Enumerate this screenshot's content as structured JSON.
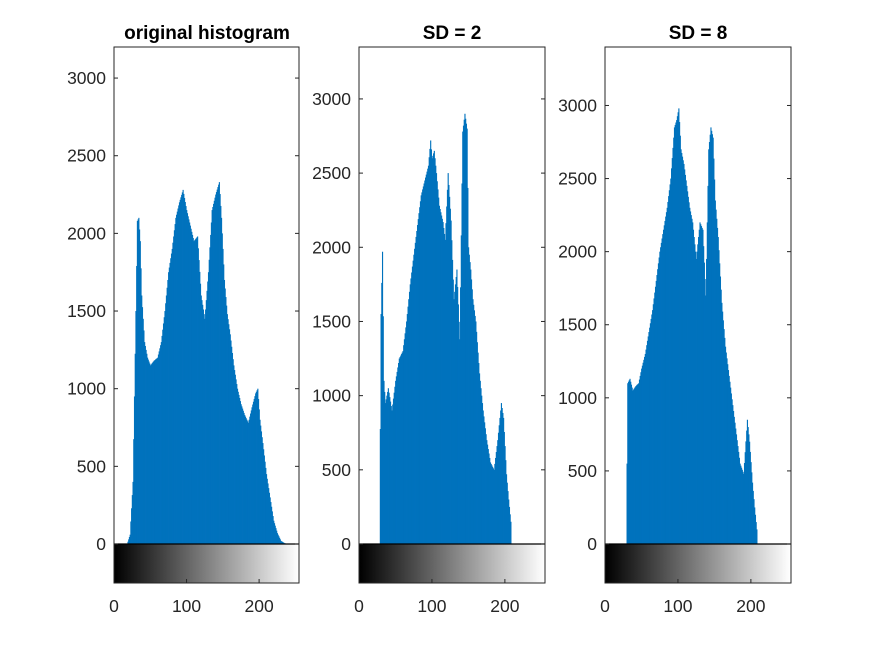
{
  "figure": {
    "background": "#ffffff",
    "bar_color": "#0072bd",
    "axis_color": "#262626"
  },
  "chart_data": [
    {
      "type": "bar",
      "title": "original histogram",
      "xlabel": "",
      "ylabel": "",
      "xlim": [
        0,
        255
      ],
      "ylim": [
        0,
        3200
      ],
      "grid": false,
      "colorbar": "grayscale 0-255",
      "xticks": [
        "0",
        "100",
        "200"
      ],
      "yticks": [
        "0",
        "500",
        "1000",
        "1500",
        "2000",
        "2500",
        "3000"
      ],
      "x": [
        18,
        22,
        26,
        30,
        32,
        34,
        36,
        38,
        42,
        46,
        50,
        55,
        60,
        65,
        70,
        75,
        80,
        85,
        90,
        95,
        100,
        105,
        110,
        115,
        120,
        125,
        130,
        135,
        140,
        145,
        148,
        152,
        156,
        160,
        165,
        170,
        175,
        180,
        185,
        190,
        195,
        198,
        201,
        205,
        210,
        215,
        220,
        225,
        230,
        235,
        240
      ],
      "values": [
        0,
        60,
        400,
        1500,
        2080,
        2100,
        1950,
        1600,
        1300,
        1200,
        1150,
        1180,
        1200,
        1300,
        1500,
        1750,
        1900,
        2100,
        2200,
        2280,
        2150,
        2050,
        1950,
        1980,
        1600,
        1450,
        1750,
        2150,
        2250,
        2330,
        2100,
        1700,
        1480,
        1350,
        1150,
        1000,
        900,
        830,
        780,
        880,
        970,
        1000,
        800,
        650,
        450,
        300,
        150,
        70,
        20,
        5,
        0
      ]
    },
    {
      "type": "bar",
      "title": "SD = 2",
      "xlabel": "",
      "ylabel": "",
      "xlim": [
        0,
        255
      ],
      "ylim": [
        0,
        3350
      ],
      "grid": false,
      "colorbar": "grayscale 0-255",
      "xticks": [
        "0",
        "100",
        "200"
      ],
      "yticks": [
        "0",
        "500",
        "1000",
        "1500",
        "2000",
        "2500",
        "3000"
      ],
      "x": [
        28,
        30,
        32,
        34,
        36,
        40,
        45,
        50,
        55,
        60,
        65,
        70,
        75,
        80,
        85,
        90,
        95,
        98,
        100,
        103,
        106,
        110,
        115,
        118,
        122,
        126,
        130,
        134,
        138,
        142,
        145,
        148,
        150,
        153,
        156,
        160,
        165,
        170,
        175,
        180,
        185,
        190,
        195,
        198,
        202,
        205,
        208,
        209
      ],
      "values": [
        0,
        1550,
        1970,
        1100,
        950,
        1050,
        900,
        1100,
        1250,
        1300,
        1500,
        1750,
        1950,
        2150,
        2350,
        2450,
        2550,
        2720,
        2600,
        2650,
        2500,
        2280,
        2170,
        2050,
        2500,
        2180,
        1650,
        1850,
        1380,
        2780,
        2900,
        2800,
        2000,
        1850,
        1650,
        1500,
        1150,
        900,
        700,
        550,
        500,
        700,
        950,
        850,
        470,
        300,
        150,
        0
      ]
    },
    {
      "type": "bar",
      "title": "SD = 8",
      "xlabel": "",
      "ylabel": "",
      "xlim": [
        0,
        255
      ],
      "ylim": [
        0,
        3400
      ],
      "grid": false,
      "colorbar": "grayscale 0-255",
      "xticks": [
        "0",
        "100",
        "200"
      ],
      "yticks": [
        "0",
        "500",
        "1000",
        "1500",
        "2000",
        "2500",
        "3000"
      ],
      "x": [
        29,
        31,
        34,
        38,
        42,
        46,
        50,
        55,
        60,
        65,
        70,
        75,
        80,
        85,
        90,
        95,
        98,
        101,
        104,
        108,
        112,
        116,
        120,
        125,
        130,
        134,
        138,
        142,
        145,
        148,
        151,
        155,
        160,
        165,
        170,
        175,
        180,
        185,
        190,
        195,
        198,
        202,
        205,
        208,
        209
      ],
      "values": [
        0,
        1100,
        1130,
        1050,
        1080,
        1100,
        1200,
        1300,
        1450,
        1600,
        1800,
        2000,
        2150,
        2300,
        2500,
        2850,
        2900,
        2980,
        2700,
        2600,
        2450,
        2300,
        2200,
        1950,
        2200,
        2150,
        1700,
        2700,
        2850,
        2780,
        2350,
        2100,
        1650,
        1350,
        1150,
        950,
        750,
        550,
        480,
        850,
        700,
        420,
        250,
        100,
        0
      ]
    }
  ]
}
